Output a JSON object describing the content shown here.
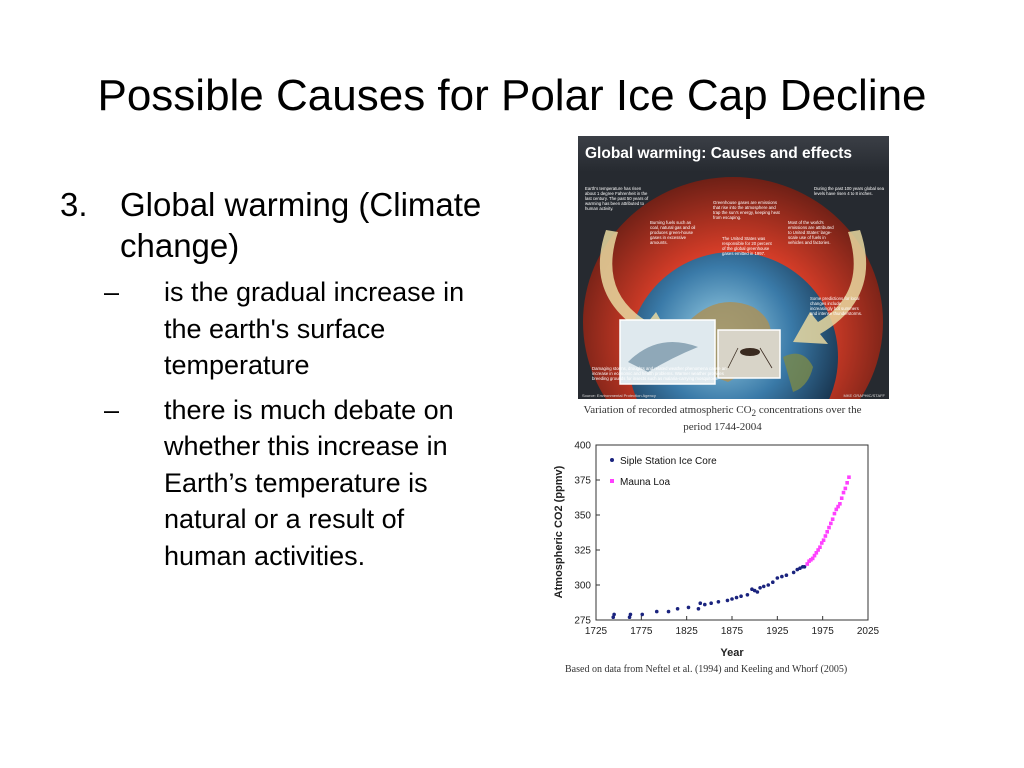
{
  "slide": {
    "title": "Possible Causes for Polar Ice Cap Decline",
    "item_number": "3.",
    "item_text": "Global warming (Climate change)",
    "dash": "–",
    "bullets": [
      "is the gradual increase in the earth's surface temperature",
      "there is much debate on whether this increase in Earth’s temperature is natural or a result of human activities."
    ]
  },
  "infographic": {
    "title": "Global warming: Causes and effects",
    "note_temperature": "Earth's temperature has risen about 1 degree Fahrenheit in the last century. The past 50 years of warming has been attributed to human activity.",
    "note_greenhouse": "Greenhouse gases are emissions that rise into the atmosphere and trap the sun's energy, keeping heat from escaping.",
    "note_sea": "During the past 100 years global sea levels have risen 4 to 8 inches.",
    "note_fuels": "Burning fuels such as coal, natural gas and oil produces green-house gases in excessive amounts.",
    "note_us": "The United States was responsible for 20 percent of the global greenhouse gases emitted in 1997.",
    "note_world": "Most of the world's emissions are attributed to United States' large-scale use of fuels in vehicles and factories.",
    "note_predictions": "Some predictions for local changes include increasingly hot summers and intense thunderstorms.",
    "note_damage": "Damaging storms, droughts and related weather phenomena cause an increase in economic and health problems. Warmer weather provides breeding grounds for insects such as malaria-carrying mosquitoes.",
    "source": "Source: Environmental Protection Agency",
    "credit": "MKE GRAPHIC/STAFF",
    "colors": {
      "background": "#262a30",
      "title": "#ffffff",
      "arrow": "#e9d8a0",
      "glow": "#e0402a"
    }
  },
  "chart": {
    "caption_line1": "Variation of recorded atmospheric CO",
    "caption_sub": "2",
    "caption_line1_end": " concentrations over the",
    "caption_line2": "period 1744-2004",
    "footnote": "Based on data from Neftel et al. (1994) and Keeling and Whorf (2005)"
  },
  "chart_data": {
    "type": "scatter",
    "xlabel": "Year",
    "ylabel": "Atmospheric CO2 (ppmv)",
    "xlim": [
      1725,
      2025
    ],
    "ylim": [
      275,
      400
    ],
    "xticks": [
      1725,
      1775,
      1825,
      1875,
      1925,
      1975,
      2025
    ],
    "yticks": [
      275,
      300,
      325,
      350,
      375,
      400
    ],
    "legend_position": "top-left",
    "series": [
      {
        "name": "Siple Station Ice Core",
        "color": "#1a237e",
        "x": [
          1744,
          1745,
          1762,
          1763,
          1776,
          1792,
          1805,
          1815,
          1827,
          1838,
          1840,
          1845,
          1852,
          1860,
          1870,
          1875,
          1880,
          1885,
          1892,
          1897,
          1900,
          1903,
          1906,
          1910,
          1915,
          1920,
          1925,
          1930,
          1935,
          1943,
          1947,
          1950,
          1953,
          1955
        ],
        "y": [
          277,
          279,
          277,
          279,
          279,
          281,
          281,
          283,
          284,
          283,
          287,
          286,
          287,
          288,
          289,
          290,
          291,
          292,
          293,
          297,
          296,
          295,
          298,
          299,
          300,
          302,
          305,
          306,
          307,
          309,
          311,
          312,
          313,
          313
        ]
      },
      {
        "name": "Mauna Loa",
        "color": "#ff40ff",
        "x": [
          1958,
          1960,
          1962,
          1964,
          1966,
          1968,
          1970,
          1972,
          1974,
          1976,
          1978,
          1980,
          1982,
          1984,
          1986,
          1988,
          1990,
          1992,
          1994,
          1996,
          1998,
          2000,
          2002,
          2004
        ],
        "y": [
          315,
          317,
          318,
          319,
          321,
          323,
          325,
          327,
          330,
          332,
          335,
          338,
          341,
          344,
          347,
          351,
          354,
          356,
          358,
          362,
          366,
          369,
          373,
          377
        ]
      }
    ]
  }
}
